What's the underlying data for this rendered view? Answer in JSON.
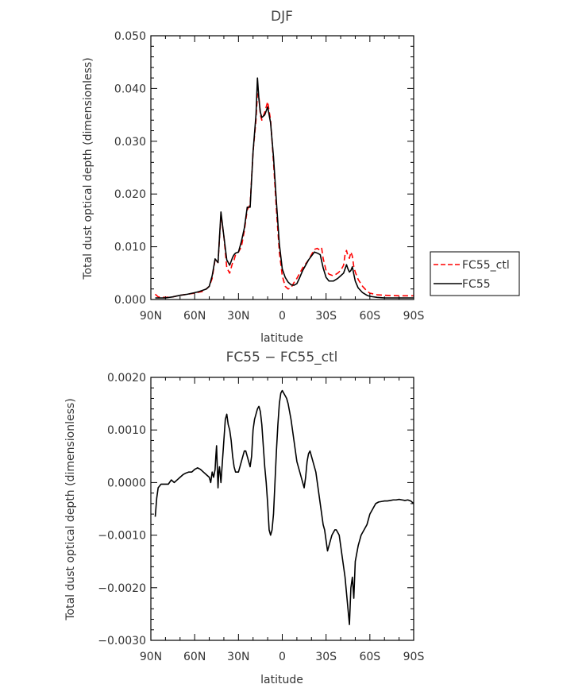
{
  "chart_data": [
    {
      "type": "line",
      "title": "DJF",
      "xlabel": "latitude",
      "ylabel": "Total dust optical depth (dimensionless)",
      "xlim": [
        90,
        -90
      ],
      "ylim": [
        0,
        0.05
      ],
      "x_tick_values": [
        90,
        60,
        30,
        0,
        -30,
        -60,
        -90
      ],
      "x_tick_labels": [
        "90N",
        "60N",
        "30N",
        "0",
        "30S",
        "60S",
        "90S"
      ],
      "y_tick_values": [
        0,
        0.01,
        0.02,
        0.03,
        0.04,
        0.05
      ],
      "y_tick_labels": [
        "0.000",
        "0.010",
        "0.020",
        "0.030",
        "0.040",
        "0.050"
      ],
      "legend": {
        "placement": "right",
        "entries": [
          "FC55_ctl",
          "FC55"
        ]
      },
      "series": [
        {
          "name": "FC55_ctl",
          "color": "#ff0000",
          "dash": "dashed",
          "x": [
            87,
            85,
            80,
            75,
            70,
            65,
            60,
            57,
            55,
            52,
            50,
            48,
            46,
            44,
            42,
            40,
            38,
            36,
            34,
            33,
            32,
            30,
            28,
            26,
            24,
            22,
            20,
            18,
            17,
            16,
            15,
            14,
            12,
            10,
            8,
            6,
            4,
            2,
            0,
            -2,
            -4,
            -6,
            -8,
            -10,
            -12,
            -14,
            -18,
            -22,
            -24,
            -26,
            -27,
            -28,
            -30,
            -32,
            -35,
            -38,
            -40,
            -42,
            -43,
            -44,
            -45,
            -46,
            -47,
            -48,
            -49,
            -50,
            -52,
            -55,
            -58,
            -60,
            -65,
            -70,
            -80,
            -90
          ],
          "y": [
            0.001,
            0.0005,
            0.0004,
            0.0005,
            0.0008,
            0.001,
            0.0012,
            0.0014,
            0.0015,
            0.002,
            0.0025,
            0.004,
            0.0076,
            0.007,
            0.016,
            0.012,
            0.006,
            0.005,
            0.007,
            0.0075,
            0.0085,
            0.009,
            0.01,
            0.013,
            0.017,
            0.018,
            0.028,
            0.034,
            0.039,
            0.0385,
            0.035,
            0.034,
            0.0355,
            0.0375,
            0.034,
            0.026,
            0.017,
            0.009,
            0.0045,
            0.0025,
            0.002,
            0.0022,
            0.0032,
            0.004,
            0.005,
            0.006,
            0.0075,
            0.0095,
            0.0097,
            0.0093,
            0.0097,
            0.0078,
            0.0055,
            0.0048,
            0.0045,
            0.005,
            0.0055,
            0.0065,
            0.0085,
            0.0093,
            0.0082,
            0.0078,
            0.009,
            0.0082,
            0.0062,
            0.0052,
            0.0038,
            0.0025,
            0.0016,
            0.0012,
            0.0009,
            0.0008,
            0.0007,
            0.0007
          ]
        },
        {
          "name": "FC55",
          "color": "#000000",
          "dash": "solid",
          "x": [
            87,
            85,
            80,
            75,
            70,
            65,
            60,
            57,
            55,
            52,
            50,
            48,
            46,
            44,
            42,
            40,
            38,
            36,
            34,
            33,
            32,
            30,
            28,
            26,
            24,
            22,
            20,
            18,
            17,
            16,
            15,
            14,
            12,
            10,
            8,
            6,
            4,
            2,
            0,
            -2,
            -4,
            -6,
            -8,
            -10,
            -12,
            -14,
            -18,
            -22,
            -24,
            -26,
            -28,
            -30,
            -32,
            -35,
            -38,
            -40,
            -42,
            -43,
            -44,
            -45,
            -46,
            -47,
            -48,
            -49,
            -50,
            -52,
            -55,
            -58,
            -60,
            -65,
            -70,
            -80,
            -90
          ],
          "y": [
            0.0003,
            0.0003,
            0.0003,
            0.0005,
            0.0008,
            0.001,
            0.0013,
            0.0015,
            0.0017,
            0.002,
            0.0025,
            0.0045,
            0.0077,
            0.007,
            0.0166,
            0.012,
            0.0075,
            0.0065,
            0.008,
            0.0085,
            0.0088,
            0.009,
            0.011,
            0.0135,
            0.0175,
            0.0175,
            0.028,
            0.035,
            0.042,
            0.038,
            0.0355,
            0.0345,
            0.035,
            0.0365,
            0.0335,
            0.027,
            0.0185,
            0.0105,
            0.0058,
            0.0042,
            0.0033,
            0.0028,
            0.0027,
            0.003,
            0.0042,
            0.0055,
            0.0075,
            0.009,
            0.0088,
            0.0085,
            0.006,
            0.0042,
            0.0035,
            0.0035,
            0.004,
            0.0045,
            0.005,
            0.0058,
            0.0066,
            0.0058,
            0.0052,
            0.0055,
            0.0062,
            0.0048,
            0.0035,
            0.0022,
            0.0013,
            0.0008,
            0.0006,
            0.0004,
            0.0003,
            0.0003,
            0.0003
          ]
        }
      ]
    },
    {
      "type": "line",
      "title": "FC55 − FC55_ctl",
      "xlabel": "latitude",
      "ylabel": "Total dust optical depth (dimensionless)",
      "xlim": [
        90,
        -90
      ],
      "ylim": [
        -0.003,
        0.002
      ],
      "x_tick_values": [
        90,
        60,
        30,
        0,
        -30,
        -60,
        -90
      ],
      "x_tick_labels": [
        "90N",
        "60N",
        "30N",
        "0",
        "30S",
        "60S",
        "90S"
      ],
      "y_tick_values": [
        -0.003,
        -0.002,
        -0.001,
        0,
        0.001,
        0.002
      ],
      "y_tick_labels": [
        "−0.0030",
        "−0.0020",
        "−0.0010",
        "0.0000",
        "0.0010",
        "0.0020"
      ],
      "series": [
        {
          "name": "",
          "color": "#000000",
          "dash": "solid",
          "x": [
            87,
            86,
            85,
            83,
            80,
            78,
            76,
            74,
            72,
            70,
            68,
            66,
            64,
            62,
            60,
            58,
            56,
            54,
            52,
            50,
            49,
            48,
            47,
            46,
            45.5,
            45,
            44.5,
            44,
            43.5,
            43,
            42,
            41,
            40,
            39,
            38,
            37,
            36,
            35,
            34,
            33,
            32,
            31,
            30,
            29,
            28,
            27,
            26,
            25,
            24,
            23,
            22,
            21,
            20,
            19,
            18,
            17,
            16,
            15,
            14,
            13,
            12,
            11,
            10,
            9,
            8,
            7,
            6,
            5,
            4,
            3,
            2,
            1,
            0,
            -1,
            -2,
            -3,
            -4,
            -5,
            -6,
            -7,
            -8,
            -9,
            -10,
            -11,
            -12,
            -13,
            -14,
            -15,
            -16,
            -17,
            -18,
            -19,
            -20,
            -21,
            -22,
            -23,
            -24,
            -25,
            -26,
            -27,
            -28,
            -29,
            -30,
            -31,
            -32,
            -33,
            -34,
            -35,
            -36,
            -37,
            -38,
            -39,
            -40,
            -41,
            -42,
            -43,
            -44,
            -45,
            -46,
            -47,
            -48,
            -49,
            -50,
            -52,
            -54,
            -56,
            -58,
            -60,
            -62,
            -64,
            -66,
            -68,
            -70,
            -72,
            -74,
            -76,
            -78,
            -80,
            -82,
            -84,
            -86,
            -88,
            -90
          ],
          "y": [
            -0.00065,
            -0.0003,
            -0.0001,
            -3e-05,
            -3e-05,
            -3e-05,
            5e-05,
            0.0,
            5e-05,
            0.0001,
            0.00015,
            0.00018,
            0.0002,
            0.0002,
            0.00025,
            0.00028,
            0.00025,
            0.0002,
            0.00015,
            0.0001,
            0.0,
            0.0002,
            0.0001,
            0.00025,
            0.0005,
            0.0007,
            0.0003,
            -0.0001,
            0.0002,
            0.0003,
            0.0,
            0.0004,
            0.0008,
            0.0012,
            0.0013,
            0.0011,
            0.001,
            0.0008,
            0.0005,
            0.0003,
            0.0002,
            0.0002,
            0.0002,
            0.0003,
            0.0004,
            0.0005,
            0.0006,
            0.0006,
            0.0005,
            0.0004,
            0.0003,
            0.0005,
            0.001,
            0.0012,
            0.0013,
            0.0014,
            0.00145,
            0.00135,
            0.0011,
            0.0007,
            0.0003,
            0.0,
            -0.0004,
            -0.0009,
            -0.001,
            -0.0009,
            -0.0006,
            0.0,
            0.0006,
            0.0011,
            0.0015,
            0.0017,
            0.00175,
            0.0017,
            0.00165,
            0.0016,
            0.0015,
            0.00135,
            0.0012,
            0.001,
            0.0008,
            0.0006,
            0.0004,
            0.0003,
            0.0002,
            0.0001,
            0.0,
            -0.0001,
            0.0001,
            0.0004,
            0.00055,
            0.0006,
            0.0005,
            0.0004,
            0.0003,
            0.0002,
            0.0,
            -0.0002,
            -0.0004,
            -0.0006,
            -0.0008,
            -0.0009,
            -0.0011,
            -0.0013,
            -0.0012,
            -0.0011,
            -0.001,
            -0.00095,
            -0.0009,
            -0.0009,
            -0.00095,
            -0.001,
            -0.0012,
            -0.0014,
            -0.0016,
            -0.0018,
            -0.0021,
            -0.0024,
            -0.0027,
            -0.002,
            -0.0018,
            -0.0022,
            -0.0015,
            -0.0012,
            -0.001,
            -0.0009,
            -0.0008,
            -0.0006,
            -0.0005,
            -0.0004,
            -0.00037,
            -0.00036,
            -0.00035,
            -0.00035,
            -0.00034,
            -0.00033,
            -0.00033,
            -0.00032,
            -0.00033,
            -0.00034,
            -0.00033,
            -0.00035,
            -0.0004
          ]
        }
      ]
    }
  ]
}
